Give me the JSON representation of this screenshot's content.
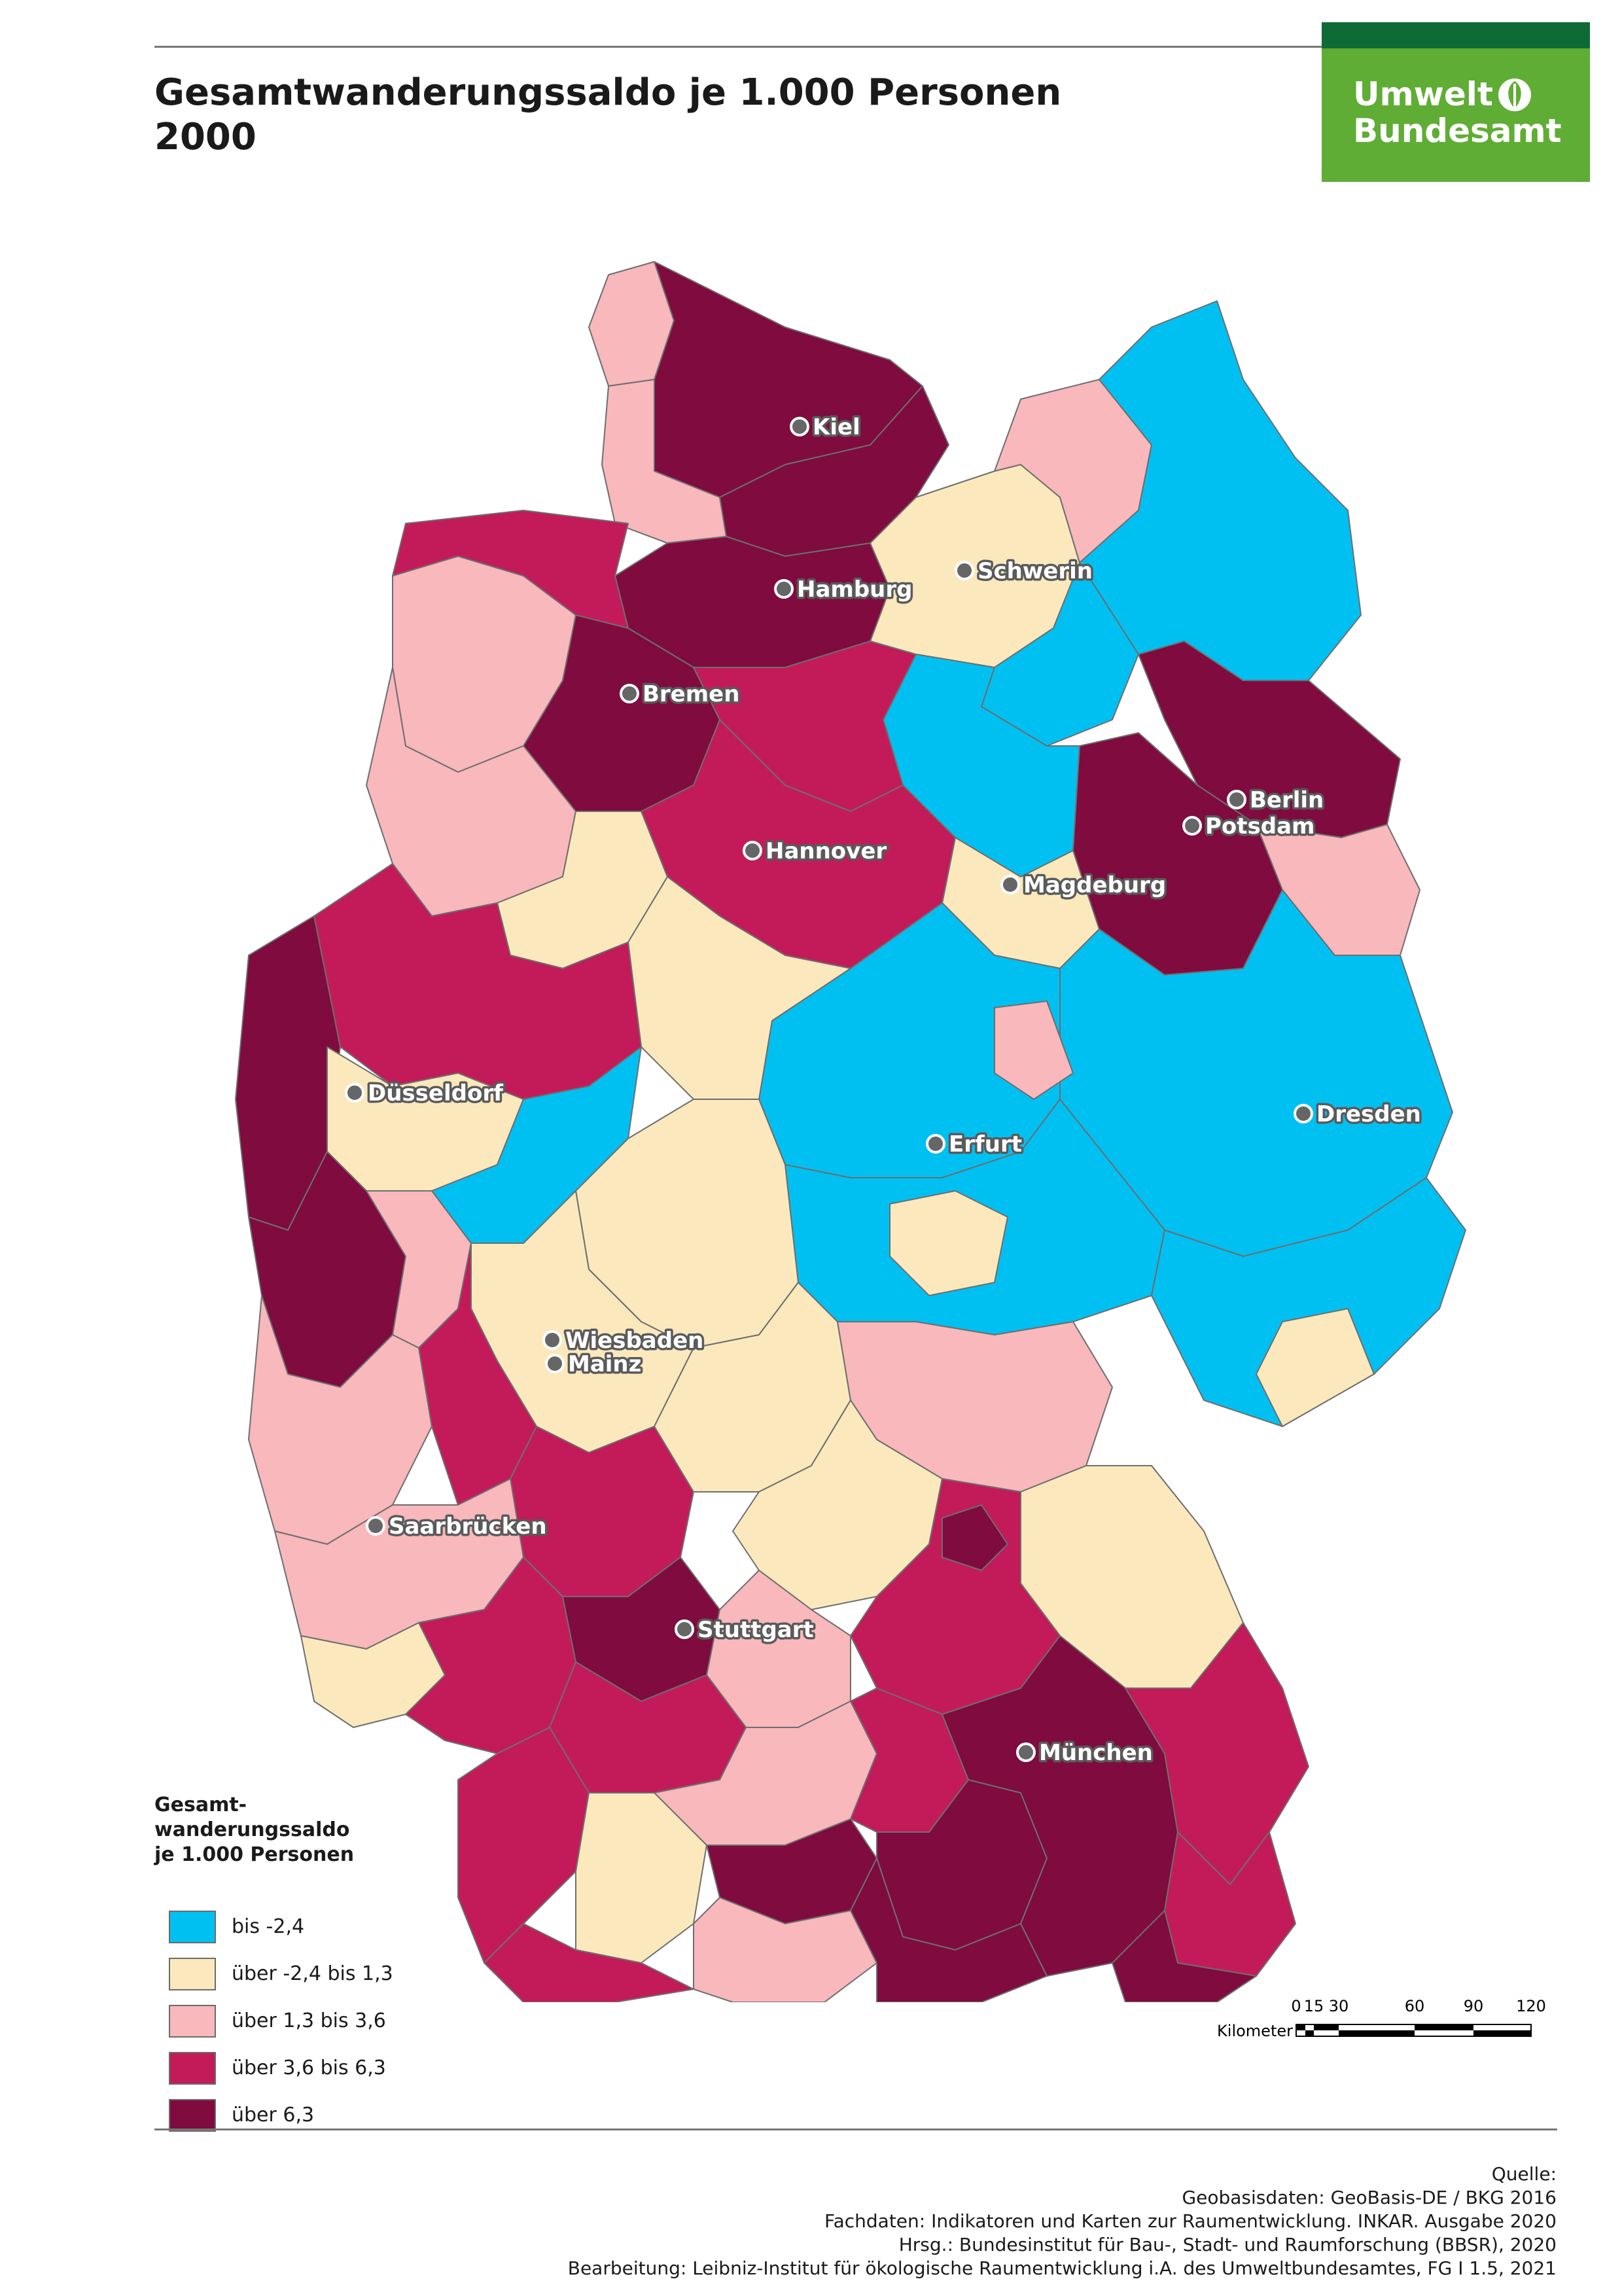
{
  "title": {
    "line1": "Gesamtwanderungssaldo je 1.000 Personen",
    "line2": "2000"
  },
  "logo": {
    "line1": "Umwelt",
    "line2": "Bundesamt"
  },
  "colors": {
    "class1": "#00c0f2",
    "class2": "#fbe9bd",
    "class3": "#f8b8bc",
    "class4": "#c31b5a",
    "class5": "#7f0b3f",
    "border": "#6e6e6e",
    "brand_green": "#5fad35",
    "brand_dark": "#0f6b35"
  },
  "legend": {
    "title": "Gesamt-\nwanderungssaldo\nje 1.000 Personen",
    "items": [
      {
        "label": "bis -2,4",
        "color": "#00c0f2"
      },
      {
        "label": "über -2,4 bis 1,3",
        "color": "#fbe9bd"
      },
      {
        "label": "über 1,3 bis 3,6",
        "color": "#f8b8bc"
      },
      {
        "label": "über 3,6 bis 6,3",
        "color": "#c31b5a"
      },
      {
        "label": "über 6,3",
        "color": "#7f0b3f"
      }
    ]
  },
  "cities": [
    {
      "name": "Kiel"
    },
    {
      "name": "Hamburg"
    },
    {
      "name": "Schwerin"
    },
    {
      "name": "Bremen"
    },
    {
      "name": "Berlin"
    },
    {
      "name": "Potsdam"
    },
    {
      "name": "Hannover"
    },
    {
      "name": "Magdeburg"
    },
    {
      "name": "Düsseldorf"
    },
    {
      "name": "Erfurt"
    },
    {
      "name": "Dresden"
    },
    {
      "name": "Wiesbaden"
    },
    {
      "name": "Mainz"
    },
    {
      "name": "Saarbrücken"
    },
    {
      "name": "Stuttgart"
    },
    {
      "name": "München"
    }
  ],
  "scale_bar": {
    "ticks": [
      "0",
      "15",
      "30",
      "60",
      "90",
      "120"
    ],
    "unit": "Kilometer"
  },
  "source": {
    "heading": "Quelle:",
    "lines": [
      "Geobasisdaten: GeoBasis-DE / BKG 2016",
      "Fachdaten: Indikatoren und Karten zur Raumentwicklung. INKAR. Ausgabe 2020",
      "Hrsg.: Bundesinstitut für Bau-, Stadt- und Raumforschung (BBSR), 2020",
      "Bearbeitung: Leibniz-Institut für ökologische Raumentwicklung i.A. des Umweltbundesamtes, FG I 1.5, 2021"
    ]
  }
}
